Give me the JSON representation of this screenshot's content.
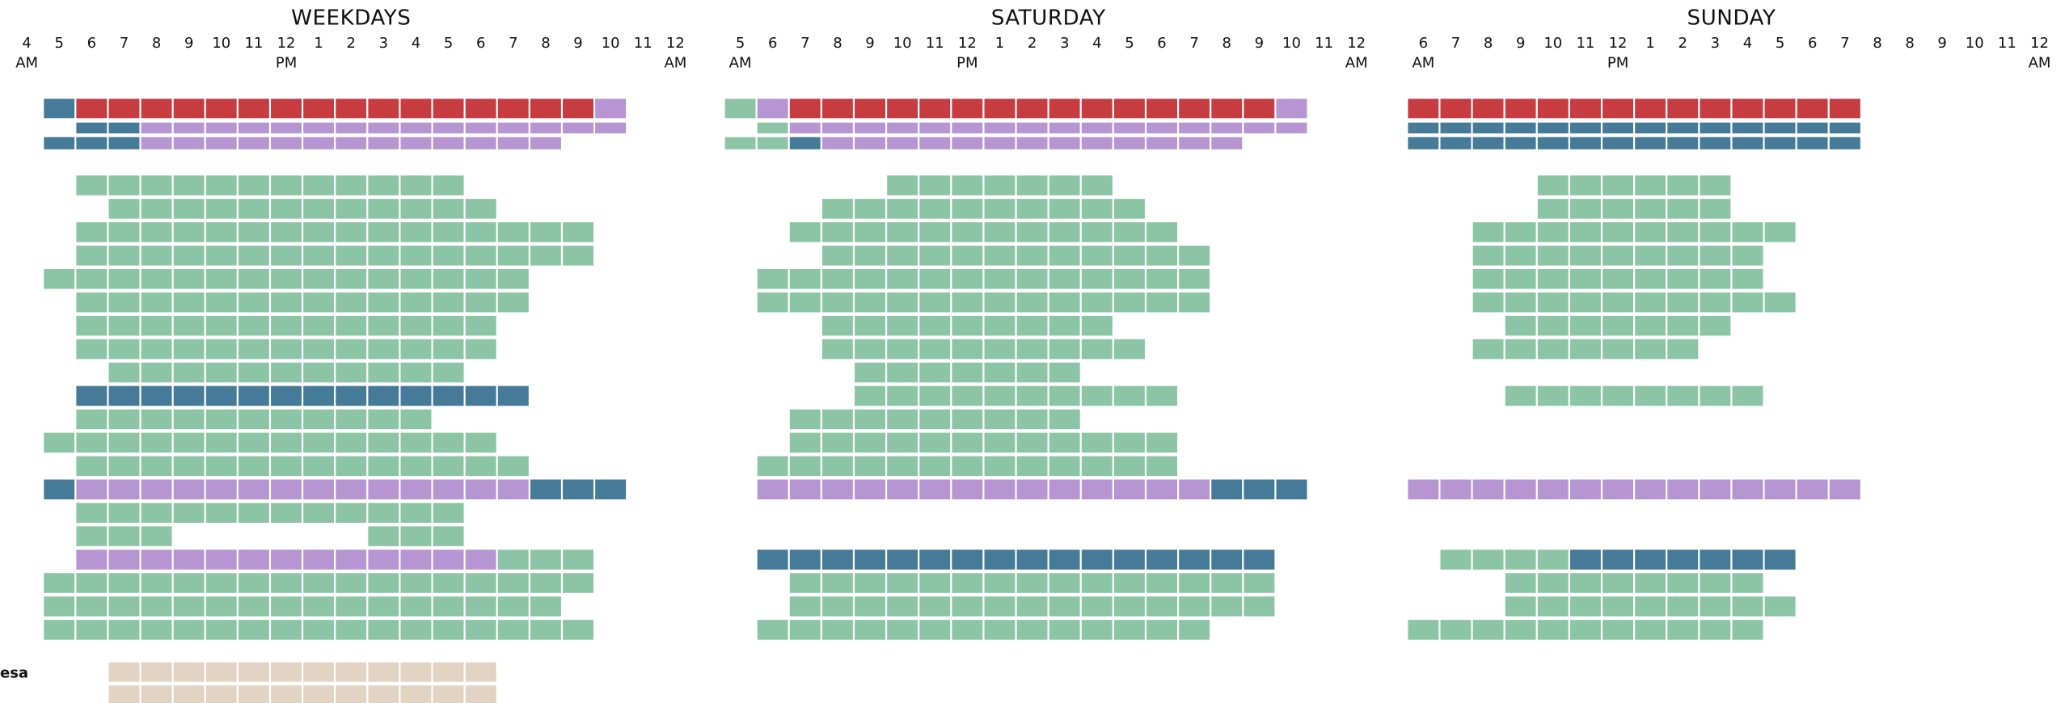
{
  "side_label": "esa",
  "panels": [
    {
      "title": "WEEKDAYS",
      "hours": [
        {
          "label": "4",
          "period": "AM"
        },
        {
          "label": "5"
        },
        {
          "label": "6"
        },
        {
          "label": "7"
        },
        {
          "label": "8"
        },
        {
          "label": "9"
        },
        {
          "label": "10"
        },
        {
          "label": "11"
        },
        {
          "label": "12",
          "period": "PM"
        },
        {
          "label": "1"
        },
        {
          "label": "2"
        },
        {
          "label": "3"
        },
        {
          "label": "4"
        },
        {
          "label": "5"
        },
        {
          "label": "6"
        },
        {
          "label": "7"
        },
        {
          "label": "8"
        },
        {
          "label": "9"
        },
        {
          "label": "10"
        },
        {
          "label": "11"
        },
        {
          "label": "12",
          "period": "AM"
        }
      ],
      "top_rows": [
        [
          [
            1,
            1,
            "#457a99"
          ],
          [
            2,
            17,
            "#c63c41"
          ],
          [
            18,
            18,
            "#b794d2"
          ]
        ],
        [
          [
            2,
            3,
            "#457a99"
          ],
          [
            4,
            18,
            "#b794d2"
          ]
        ],
        [
          [
            1,
            3,
            "#457a99"
          ],
          [
            4,
            16,
            "#b794d2"
          ]
        ]
      ],
      "rows": [
        [
          [
            2,
            13,
            "#8cc5a5"
          ]
        ],
        [
          [
            3,
            14,
            "#8cc5a5"
          ]
        ],
        [
          [
            2,
            17,
            "#8cc5a5"
          ]
        ],
        [
          [
            2,
            17,
            "#8cc5a5"
          ]
        ],
        [
          [
            1,
            15,
            "#8cc5a5"
          ]
        ],
        [
          [
            2,
            15,
            "#8cc5a5"
          ]
        ],
        [
          [
            2,
            14,
            "#8cc5a5"
          ]
        ],
        [
          [
            2,
            14,
            "#8cc5a5"
          ]
        ],
        [
          [
            3,
            13,
            "#8cc5a5"
          ]
        ],
        [
          [
            2,
            15,
            "#457a99"
          ]
        ],
        [
          [
            2,
            12,
            "#8cc5a5"
          ]
        ],
        [
          [
            1,
            14,
            "#8cc5a5"
          ]
        ],
        [
          [
            2,
            15,
            "#8cc5a5"
          ]
        ],
        [
          [
            1,
            1,
            "#457a99"
          ],
          [
            2,
            15,
            "#b794d2"
          ],
          [
            16,
            18,
            "#457a99"
          ]
        ],
        [
          [
            2,
            13,
            "#8cc5a5"
          ]
        ],
        [
          [
            2,
            4,
            "#8cc5a5"
          ],
          [
            11,
            13,
            "#8cc5a5"
          ]
        ],
        [
          [
            2,
            14,
            "#b794d2"
          ],
          [
            15,
            17,
            "#8cc5a5"
          ]
        ],
        [
          [
            1,
            17,
            "#8cc5a5"
          ]
        ],
        [
          [
            1,
            16,
            "#8cc5a5"
          ]
        ],
        [
          [
            1,
            17,
            "#8cc5a5"
          ]
        ]
      ],
      "extra_rows": [
        [
          [
            3,
            14,
            "#e3d3c3"
          ]
        ],
        [
          [
            3,
            14,
            "#e3d3c3"
          ]
        ]
      ]
    },
    {
      "title": "SATURDAY",
      "hours": [
        {
          "label": "5",
          "period": "AM"
        },
        {
          "label": "6"
        },
        {
          "label": "7"
        },
        {
          "label": "8"
        },
        {
          "label": "9"
        },
        {
          "label": "10"
        },
        {
          "label": "11"
        },
        {
          "label": "12",
          "period": "PM"
        },
        {
          "label": "1"
        },
        {
          "label": "2"
        },
        {
          "label": "3"
        },
        {
          "label": "4"
        },
        {
          "label": "5"
        },
        {
          "label": "6"
        },
        {
          "label": "7"
        },
        {
          "label": "8"
        },
        {
          "label": "9"
        },
        {
          "label": "10"
        },
        {
          "label": "11"
        },
        {
          "label": "12",
          "period": "AM"
        }
      ],
      "top_rows": [
        [
          [
            0,
            0,
            "#8cc5a5"
          ],
          [
            1,
            1,
            "#b794d2"
          ],
          [
            2,
            16,
            "#c63c41"
          ],
          [
            17,
            17,
            "#b794d2"
          ]
        ],
        [
          [
            1,
            1,
            "#8cc5a5"
          ],
          [
            2,
            17,
            "#b794d2"
          ]
        ],
        [
          [
            0,
            1,
            "#8cc5a5"
          ],
          [
            2,
            2,
            "#457a99"
          ],
          [
            3,
            15,
            "#b794d2"
          ]
        ]
      ],
      "rows": [
        [
          [
            5,
            11,
            "#8cc5a5"
          ]
        ],
        [
          [
            3,
            12,
            "#8cc5a5"
          ]
        ],
        [
          [
            2,
            13,
            "#8cc5a5"
          ]
        ],
        [
          [
            3,
            14,
            "#8cc5a5"
          ]
        ],
        [
          [
            1,
            14,
            "#8cc5a5"
          ]
        ],
        [
          [
            1,
            14,
            "#8cc5a5"
          ]
        ],
        [
          [
            3,
            11,
            "#8cc5a5"
          ]
        ],
        [
          [
            3,
            12,
            "#8cc5a5"
          ]
        ],
        [
          [
            4,
            10,
            "#8cc5a5"
          ]
        ],
        [
          [
            4,
            13,
            "#8cc5a5"
          ]
        ],
        [
          [
            2,
            10,
            "#8cc5a5"
          ]
        ],
        [
          [
            2,
            13,
            "#8cc5a5"
          ]
        ],
        [
          [
            1,
            13,
            "#8cc5a5"
          ]
        ],
        [
          [
            1,
            14,
            "#b794d2"
          ],
          [
            15,
            17,
            "#457a99"
          ]
        ],
        [],
        [],
        [
          [
            1,
            16,
            "#457a99"
          ]
        ],
        [
          [
            2,
            16,
            "#8cc5a5"
          ]
        ],
        [
          [
            2,
            16,
            "#8cc5a5"
          ]
        ],
        [
          [
            1,
            14,
            "#8cc5a5"
          ]
        ]
      ]
    },
    {
      "title": "SUNDAY",
      "hours": [
        {
          "label": "6",
          "period": "AM"
        },
        {
          "label": "7"
        },
        {
          "label": "8"
        },
        {
          "label": "9"
        },
        {
          "label": "10"
        },
        {
          "label": "11"
        },
        {
          "label": "12",
          "period": "PM"
        },
        {
          "label": "1"
        },
        {
          "label": "2"
        },
        {
          "label": "3"
        },
        {
          "label": "4"
        },
        {
          "label": "5"
        },
        {
          "label": "6"
        },
        {
          "label": "7"
        },
        {
          "label": "8"
        },
        {
          "label": "8"
        },
        {
          "label": "9"
        },
        {
          "label": "10"
        },
        {
          "label": "11"
        },
        {
          "label": "12",
          "period": "AM"
        }
      ],
      "top_rows": [
        [
          [
            0,
            13,
            "#c63c41"
          ]
        ],
        [
          [
            0,
            13,
            "#457a99"
          ]
        ],
        [
          [
            0,
            13,
            "#457a99"
          ]
        ]
      ],
      "rows": [
        [
          [
            4,
            9,
            "#8cc5a5"
          ]
        ],
        [
          [
            4,
            9,
            "#8cc5a5"
          ]
        ],
        [
          [
            2,
            11,
            "#8cc5a5"
          ]
        ],
        [
          [
            2,
            10,
            "#8cc5a5"
          ]
        ],
        [
          [
            2,
            10,
            "#8cc5a5"
          ]
        ],
        [
          [
            2,
            11,
            "#8cc5a5"
          ]
        ],
        [
          [
            3,
            9,
            "#8cc5a5"
          ]
        ],
        [
          [
            2,
            8,
            "#8cc5a5"
          ]
        ],
        [],
        [
          [
            3,
            10,
            "#8cc5a5"
          ]
        ],
        [],
        [],
        [],
        [
          [
            0,
            13,
            "#b794d2"
          ]
        ],
        [],
        [],
        [
          [
            1,
            4,
            "#8cc5a5"
          ],
          [
            5,
            11,
            "#457a99"
          ]
        ],
        [
          [
            3,
            10,
            "#8cc5a5"
          ]
        ],
        [
          [
            3,
            11,
            "#8cc5a5"
          ]
        ],
        [
          [
            0,
            10,
            "#8cc5a5"
          ]
        ]
      ]
    }
  ]
}
